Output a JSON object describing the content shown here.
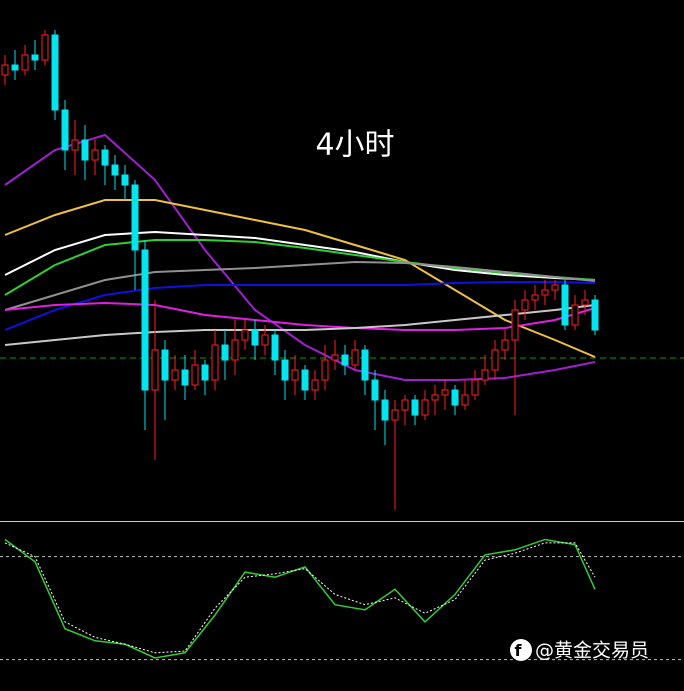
{
  "chart_data": [
    {
      "type": "candlestick",
      "title": "4小时",
      "ylim": [
        0,
        520
      ],
      "up_color": "#ff2020",
      "down_color": "#00e5ee",
      "open": [
        445,
        455,
        450,
        465,
        460,
        485,
        410,
        370,
        380,
        360,
        370,
        355,
        345,
        335,
        270,
        130,
        170,
        140,
        150,
        135,
        155,
        140,
        175,
        160,
        180,
        190,
        175,
        185,
        160,
        140,
        150,
        130,
        140,
        160,
        165,
        155,
        170,
        140,
        120,
        100,
        110,
        120,
        105,
        120,
        125,
        130,
        115,
        125,
        140,
        150,
        170,
        180,
        210,
        220,
        225,
        230,
        235,
        195,
        215,
        220
      ],
      "high": [
        465,
        470,
        475,
        480,
        490,
        490,
        420,
        400,
        395,
        380,
        375,
        365,
        355,
        340,
        280,
        220,
        180,
        165,
        165,
        170,
        160,
        190,
        190,
        200,
        200,
        200,
        195,
        190,
        170,
        165,
        155,
        150,
        175,
        180,
        175,
        180,
        175,
        150,
        130,
        120,
        125,
        125,
        130,
        135,
        140,
        135,
        140,
        150,
        165,
        180,
        190,
        220,
        230,
        235,
        240,
        240,
        240,
        225,
        230,
        225
      ],
      "low": [
        435,
        440,
        445,
        450,
        455,
        400,
        350,
        345,
        340,
        345,
        335,
        330,
        320,
        230,
        90,
        60,
        100,
        130,
        120,
        130,
        125,
        130,
        140,
        145,
        170,
        160,
        165,
        145,
        120,
        125,
        120,
        120,
        130,
        150,
        145,
        150,
        125,
        90,
        75,
        10,
        95,
        95,
        100,
        105,
        110,
        105,
        110,
        120,
        135,
        140,
        160,
        105,
        200,
        210,
        215,
        220,
        190,
        190,
        205,
        185
      ],
      "close": [
        455,
        450,
        465,
        460,
        485,
        410,
        370,
        380,
        360,
        370,
        355,
        345,
        335,
        270,
        130,
        170,
        140,
        150,
        135,
        155,
        140,
        175,
        160,
        180,
        190,
        175,
        185,
        160,
        140,
        150,
        130,
        140,
        160,
        165,
        155,
        170,
        140,
        120,
        100,
        110,
        120,
        105,
        120,
        125,
        130,
        115,
        125,
        140,
        150,
        170,
        180,
        210,
        220,
        225,
        230,
        235,
        195,
        215,
        220,
        190
      ],
      "level": 162,
      "level_color": "#00a000",
      "ma_x": [
        0,
        5,
        10,
        15,
        20,
        25,
        30,
        35,
        40,
        45,
        50,
        55,
        59
      ],
      "series": [
        {
          "color": "#a020d0",
          "values": [
            335,
            370,
            385,
            340,
            270,
            210,
            175,
            150,
            140,
            140,
            142,
            150,
            158
          ]
        },
        {
          "color": "#f0c040",
          "values": [
            285,
            305,
            320,
            320,
            310,
            300,
            290,
            275,
            260,
            230,
            200,
            180,
            163
          ]
        },
        {
          "color": "#ffffff",
          "values": [
            245,
            270,
            285,
            288,
            285,
            282,
            275,
            268,
            258,
            250,
            245,
            242,
            240
          ]
        },
        {
          "color": "#30d030",
          "values": [
            225,
            255,
            275,
            280,
            280,
            278,
            272,
            265,
            258,
            252,
            247,
            243,
            240
          ]
        },
        {
          "color": "#909090",
          "values": [
            210,
            225,
            240,
            248,
            250,
            252,
            255,
            258,
            257,
            253,
            248,
            243,
            239
          ]
        },
        {
          "color": "#1010e0",
          "values": [
            190,
            210,
            225,
            232,
            235,
            235,
            235,
            235,
            235,
            237,
            238,
            238,
            237
          ]
        },
        {
          "color": "#e020e0",
          "values": [
            210,
            215,
            217,
            215,
            205,
            200,
            195,
            192,
            190,
            190,
            192,
            200,
            212
          ]
        },
        {
          "color": "#c8c8c8",
          "values": [
            175,
            180,
            185,
            188,
            190,
            190,
            190,
            192,
            195,
            200,
            205,
            210,
            215
          ]
        }
      ]
    },
    {
      "type": "line",
      "ylim": [
        0,
        100
      ],
      "levels": [
        20,
        80
      ],
      "x": [
        0,
        3,
        6,
        9,
        12,
        15,
        18,
        21,
        24,
        27,
        30,
        33,
        36,
        39,
        42,
        45,
        48,
        51,
        54,
        57,
        59
      ],
      "series": [
        {
          "color": "#33cc33",
          "dash": false,
          "values": [
            90,
            77,
            38,
            31,
            29,
            21,
            24,
            46,
            71,
            68,
            74,
            52,
            49,
            61,
            42,
            58,
            81,
            84,
            90,
            87,
            61
          ]
        },
        {
          "color": "#ffffff",
          "dash": true,
          "values": [
            88,
            80,
            42,
            33,
            29,
            24,
            25,
            50,
            68,
            70,
            73,
            58,
            52,
            56,
            47,
            55,
            78,
            82,
            88,
            88,
            68
          ]
        }
      ]
    }
  ],
  "watermark": "@黄金交易员"
}
